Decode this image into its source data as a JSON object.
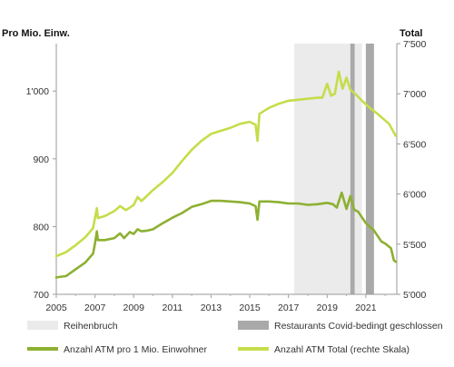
{
  "chart_data": {
    "type": "line",
    "left_axis_title": "Pro Mio. Einw.",
    "right_axis_title": "Total",
    "x_ticks": [
      "2005",
      "2007",
      "2009",
      "2011",
      "2013",
      "2015",
      "2017",
      "2019",
      "2021"
    ],
    "x_range": [
      2005.0,
      2022.6
    ],
    "left_ticks": [
      "700",
      "800",
      "900",
      "1'000"
    ],
    "left_range": [
      700,
      1070
    ],
    "right_ticks": [
      "5'000",
      "5'500",
      "6'000",
      "6'500",
      "7'000",
      "7'500"
    ],
    "right_range": [
      5000,
      7500
    ],
    "shaded_regions": [
      {
        "legend": "Reihenbruch",
        "color": "#ebebeb",
        "start": 2017.3,
        "end": 2020.8
      },
      {
        "legend": "Restaurants Covid-bedingt geschlossen",
        "color": "#a9a9a9",
        "periods": [
          [
            2020.2,
            2020.42
          ],
          [
            2021.0,
            2021.42
          ]
        ]
      }
    ],
    "series": [
      {
        "name": "Anzahl ATM pro 1 Mio. Einwohner",
        "axis": "left",
        "color": "#8db031",
        "points": [
          [
            2005.0,
            725
          ],
          [
            2005.5,
            727
          ],
          [
            2006.0,
            737
          ],
          [
            2006.5,
            747
          ],
          [
            2006.9,
            760
          ],
          [
            2007.0,
            775
          ],
          [
            2007.1,
            793
          ],
          [
            2007.15,
            780
          ],
          [
            2007.5,
            780
          ],
          [
            2008.0,
            783
          ],
          [
            2008.3,
            790
          ],
          [
            2008.5,
            783
          ],
          [
            2008.8,
            792
          ],
          [
            2009.0,
            789
          ],
          [
            2009.2,
            796
          ],
          [
            2009.4,
            793
          ],
          [
            2009.7,
            794
          ],
          [
            2010.0,
            796
          ],
          [
            2010.5,
            805
          ],
          [
            2011.0,
            813
          ],
          [
            2011.5,
            820
          ],
          [
            2012.0,
            829
          ],
          [
            2012.5,
            833
          ],
          [
            2013.0,
            838
          ],
          [
            2013.5,
            838
          ],
          [
            2014.0,
            837
          ],
          [
            2014.5,
            836
          ],
          [
            2015.0,
            834
          ],
          [
            2015.3,
            830
          ],
          [
            2015.4,
            810
          ],
          [
            2015.5,
            837
          ],
          [
            2016.0,
            837
          ],
          [
            2016.5,
            836
          ],
          [
            2017.0,
            834
          ],
          [
            2017.5,
            834
          ],
          [
            2018.0,
            832
          ],
          [
            2018.5,
            833
          ],
          [
            2019.0,
            835
          ],
          [
            2019.3,
            833
          ],
          [
            2019.5,
            828
          ],
          [
            2019.75,
            850
          ],
          [
            2020.0,
            826
          ],
          [
            2020.2,
            845
          ],
          [
            2020.4,
            825
          ],
          [
            2020.6,
            822
          ],
          [
            2021.0,
            805
          ],
          [
            2021.4,
            795
          ],
          [
            2021.8,
            778
          ],
          [
            2022.0,
            775
          ],
          [
            2022.3,
            768
          ],
          [
            2022.45,
            750
          ],
          [
            2022.55,
            748
          ]
        ]
      },
      {
        "name": "Anzahl ATM Total (rechte Skala)",
        "axis": "right",
        "color": "#c5dd4a",
        "points": [
          [
            2005.0,
            5380
          ],
          [
            2005.5,
            5420
          ],
          [
            2006.0,
            5490
          ],
          [
            2006.5,
            5570
          ],
          [
            2006.9,
            5660
          ],
          [
            2007.1,
            5860
          ],
          [
            2007.15,
            5760
          ],
          [
            2007.5,
            5780
          ],
          [
            2008.0,
            5830
          ],
          [
            2008.3,
            5880
          ],
          [
            2008.6,
            5840
          ],
          [
            2009.0,
            5890
          ],
          [
            2009.2,
            5970
          ],
          [
            2009.4,
            5930
          ],
          [
            2010.0,
            6040
          ],
          [
            2010.5,
            6120
          ],
          [
            2011.0,
            6210
          ],
          [
            2011.5,
            6330
          ],
          [
            2012.0,
            6440
          ],
          [
            2012.5,
            6530
          ],
          [
            2013.0,
            6600
          ],
          [
            2013.5,
            6630
          ],
          [
            2014.0,
            6660
          ],
          [
            2014.5,
            6700
          ],
          [
            2015.0,
            6720
          ],
          [
            2015.3,
            6690
          ],
          [
            2015.4,
            6530
          ],
          [
            2015.5,
            6800
          ],
          [
            2016.0,
            6860
          ],
          [
            2016.5,
            6900
          ],
          [
            2017.0,
            6930
          ],
          [
            2017.5,
            6940
          ],
          [
            2018.0,
            6950
          ],
          [
            2018.5,
            6960
          ],
          [
            2018.75,
            6960
          ],
          [
            2019.0,
            7100
          ],
          [
            2019.2,
            6980
          ],
          [
            2019.4,
            7000
          ],
          [
            2019.6,
            7220
          ],
          [
            2019.8,
            7050
          ],
          [
            2020.0,
            7160
          ],
          [
            2020.2,
            7040
          ],
          [
            2020.5,
            6990
          ],
          [
            2020.8,
            6930
          ],
          [
            2021.2,
            6860
          ],
          [
            2021.6,
            6800
          ],
          [
            2021.9,
            6750
          ],
          [
            2022.2,
            6700
          ],
          [
            2022.4,
            6630
          ],
          [
            2022.55,
            6580
          ]
        ]
      }
    ],
    "legend": [
      {
        "label": "Reihenbruch",
        "kind": "box",
        "color": "#ebebeb"
      },
      {
        "label": "Restaurants Covid-bedingt geschlossen",
        "kind": "box",
        "color": "#a9a9a9"
      },
      {
        "label": "Anzahl ATM pro 1 Mio. Einwohner",
        "kind": "line",
        "color": "#8db031"
      },
      {
        "label": "Anzahl ATM Total (rechte Skala)",
        "kind": "line",
        "color": "#c5dd4a"
      }
    ],
    "legend_placement": "bottom",
    "grid": false
  }
}
